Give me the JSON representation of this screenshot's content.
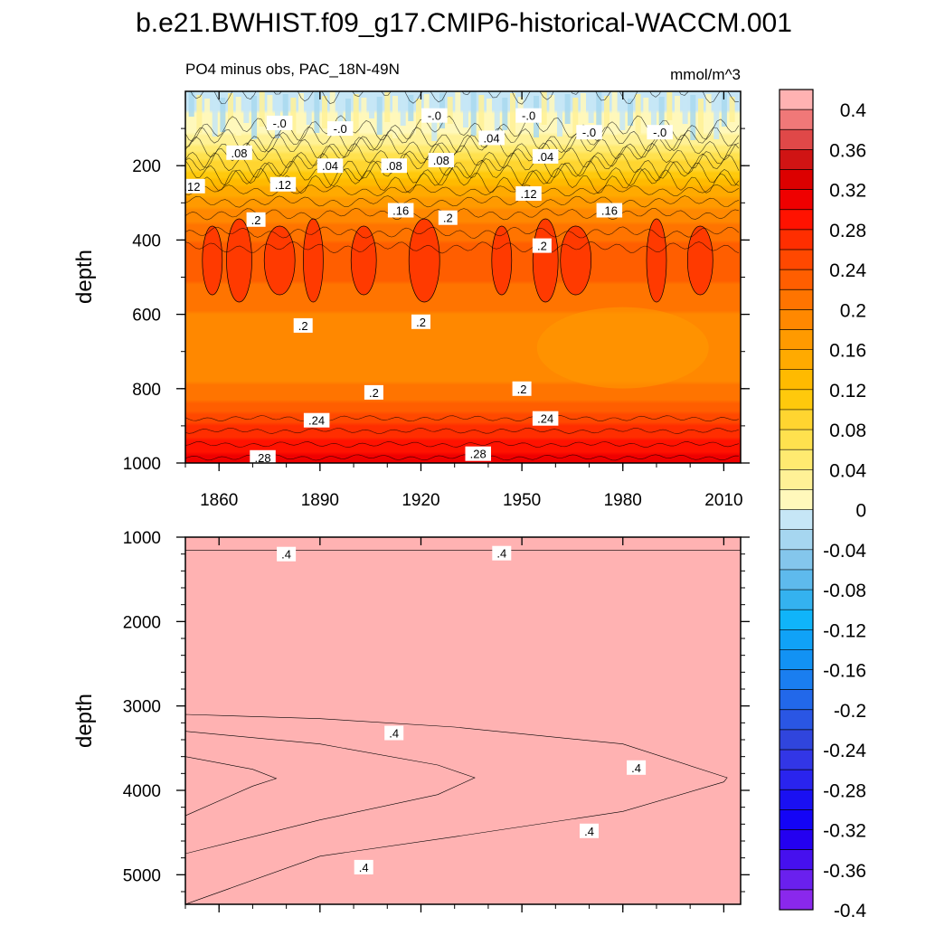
{
  "title": "b.e21.BWHIST.f09_g17.CMIP6-historical-WACCM.001",
  "chart_data": [
    {
      "type": "heatmap",
      "panel": "upper",
      "subtitle_left": "PO4 minus obs, PAC_18N-49N",
      "subtitle_right": "mmol/m^3",
      "ylabel": "depth",
      "xlabel": "",
      "xlim": [
        1850,
        2015
      ],
      "ylim": [
        1000,
        0
      ],
      "xticks": [
        1860,
        1890,
        1920,
        1950,
        1980,
        2010
      ],
      "xtick_labels": [
        "1860",
        "1890",
        "1920",
        "1950",
        "1980",
        "2010"
      ],
      "yticks": [
        200,
        400,
        600,
        800,
        1000
      ],
      "ytick_labels": [
        "200",
        "400",
        "600",
        "800",
        "1000"
      ],
      "depth_profile": [
        [
          0,
          -0.02
        ],
        [
          50,
          -0.01
        ],
        [
          100,
          0.0
        ],
        [
          130,
          0.02
        ],
        [
          160,
          0.05
        ],
        [
          200,
          0.08
        ],
        [
          240,
          0.12
        ],
        [
          280,
          0.15
        ],
        [
          330,
          0.18
        ],
        [
          380,
          0.2
        ],
        [
          420,
          0.22
        ],
        [
          460,
          0.23
        ],
        [
          520,
          0.21
        ],
        [
          600,
          0.19
        ],
        [
          650,
          0.18
        ],
        [
          720,
          0.18
        ],
        [
          780,
          0.19
        ],
        [
          830,
          0.21
        ],
        [
          880,
          0.24
        ],
        [
          930,
          0.27
        ],
        [
          970,
          0.29
        ],
        [
          1000,
          0.31
        ]
      ],
      "contour_labels": [
        {
          "text": "-.0",
          "x": 1878,
          "depth": 85
        },
        {
          "text": "-.0",
          "x": 1896,
          "depth": 100
        },
        {
          "text": "-.0",
          "x": 1924,
          "depth": 65
        },
        {
          "text": "-.0",
          "x": 1952,
          "depth": 65
        },
        {
          "text": "-.0",
          "x": 1970,
          "depth": 110
        },
        {
          "text": "-.0",
          "x": 1991,
          "depth": 110
        },
        {
          "text": ".04",
          "x": 1893,
          "depth": 200
        },
        {
          "text": ".04",
          "x": 1941,
          "depth": 125
        },
        {
          "text": ".04",
          "x": 1957,
          "depth": 175
        },
        {
          "text": ".08",
          "x": 1866,
          "depth": 165
        },
        {
          "text": ".08",
          "x": 1912,
          "depth": 200
        },
        {
          "text": ".08",
          "x": 1926,
          "depth": 185
        },
        {
          "text": ".12",
          "x": 1852,
          "depth": 255
        },
        {
          "text": ".12",
          "x": 1879,
          "depth": 250
        },
        {
          "text": ".12",
          "x": 1952,
          "depth": 275
        },
        {
          "text": ".16",
          "x": 1914,
          "depth": 320
        },
        {
          "text": ".16",
          "x": 1976,
          "depth": 320
        },
        {
          "text": ".2",
          "x": 1871,
          "depth": 345
        },
        {
          "text": ".2",
          "x": 1928,
          "depth": 340
        },
        {
          "text": ".2",
          "x": 1956,
          "depth": 415
        },
        {
          "text": ".2",
          "x": 1885,
          "depth": 630
        },
        {
          "text": ".2",
          "x": 1920,
          "depth": 620
        },
        {
          "text": ".2",
          "x": 1906,
          "depth": 810
        },
        {
          "text": ".2",
          "x": 1950,
          "depth": 800
        },
        {
          "text": ".24",
          "x": 1889,
          "depth": 885
        },
        {
          "text": ".24",
          "x": 1957,
          "depth": 880
        },
        {
          "text": ".28",
          "x": 1873,
          "depth": 985
        },
        {
          "text": ".28",
          "x": 1937,
          "depth": 975
        }
      ]
    },
    {
      "type": "heatmap",
      "panel": "lower",
      "ylabel": "depth",
      "xlabel": "",
      "xlim": [
        1850,
        2015
      ],
      "ylim": [
        5350,
        1000
      ],
      "yticks": [
        1000,
        2000,
        3000,
        4000,
        5000
      ],
      "ytick_labels": [
        "1000",
        "2000",
        "3000",
        "4000",
        "5000"
      ],
      "background_value": 0.42,
      "top_band_values": [
        0.48,
        0.46,
        0.44
      ],
      "regions": [
        {
          "value": 0.44,
          "outline": [
            [
              1850,
              3100
            ],
            [
              1890,
              3150
            ],
            [
              1930,
              3250
            ],
            [
              1980,
              3450
            ],
            [
              2011,
              3850
            ],
            [
              2010,
              3900
            ],
            [
              1980,
              4250
            ],
            [
              1930,
              4550
            ],
            [
              1890,
              4780
            ],
            [
              1850,
              5350
            ]
          ]
        },
        {
          "value": 0.46,
          "outline": [
            [
              1850,
              3300
            ],
            [
              1890,
              3450
            ],
            [
              1925,
              3700
            ],
            [
              1936,
              3850
            ],
            [
              1925,
              4050
            ],
            [
              1890,
              4350
            ],
            [
              1850,
              4750
            ]
          ]
        },
        {
          "value": 0.48,
          "outline": [
            [
              1850,
              3600
            ],
            [
              1870,
              3750
            ],
            [
              1877,
              3860
            ],
            [
              1870,
              3950
            ],
            [
              1850,
              4300
            ]
          ]
        }
      ],
      "contour_labels": [
        {
          "text": ".4",
          "x": 1880,
          "depth": 1200
        },
        {
          "text": ".4",
          "x": 1944,
          "depth": 1190
        },
        {
          "text": ".4",
          "x": 1912,
          "depth": 3320
        },
        {
          "text": ".4",
          "x": 1984,
          "depth": 3730
        },
        {
          "text": ".4",
          "x": 1970,
          "depth": 4480
        },
        {
          "text": ".4",
          "x": 1903,
          "depth": 4910
        }
      ]
    },
    {
      "type": "colorbar",
      "ticks": [
        "0.4",
        "0.36",
        "0.32",
        "0.28",
        "0.24",
        "0.2",
        "0.16",
        "0.12",
        "0.08",
        "0.04",
        "0",
        "-0.04",
        "-0.08",
        "-0.12",
        "-0.16",
        "-0.2",
        "-0.24",
        "-0.28",
        "-0.32",
        "-0.36",
        "-0.4"
      ],
      "colors": [
        "#ffb2b2",
        "#f07878",
        "#e04848",
        "#d01414",
        "#dc0000",
        "#ef0000",
        "#ff1200",
        "#ff2e00",
        "#ff4800",
        "#ff5e00",
        "#ff7400",
        "#ff8800",
        "#ff9a00",
        "#ffaa00",
        "#ffba00",
        "#ffc90c",
        "#ffd530",
        "#ffe14e",
        "#ffea70",
        "#fff196",
        "#fff8bb",
        "#c6e6f6",
        "#a6d6f0",
        "#84c6ec",
        "#5ebaed",
        "#34b2ef",
        "#10b4f9",
        "#10a2f7",
        "#1292f4",
        "#1a7ef0",
        "#2268ea",
        "#2a56e4",
        "#3045dd",
        "#3236e6",
        "#2a24ee",
        "#1a10f2",
        "#1404f6",
        "#2400f0",
        "#4610ee",
        "#6a20ee",
        "#8a28ec"
      ]
    }
  ]
}
